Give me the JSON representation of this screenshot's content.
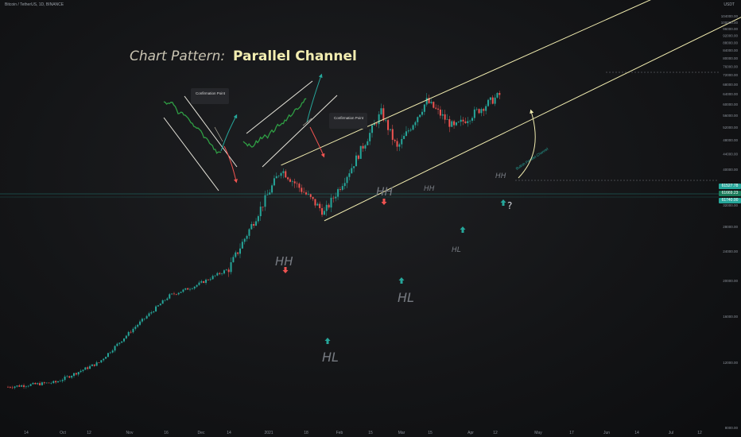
{
  "header": {
    "symbol": "Bitcoin / TetherUS, 1D, BINANCE",
    "currency": "USDT"
  },
  "annotations": {
    "pattern_title": "Chart Pattern:",
    "pattern_name": "Parallel Channel",
    "confirmation_point": "Confirmation Point",
    "channel_label": "Bullish Parallel Channel",
    "hh": "HH",
    "hl": "HL",
    "question": "?"
  },
  "price_boxes": [
    {
      "label": "61527.78",
      "color": "#26a69a"
    },
    {
      "label": "61669.23",
      "color": "#1b7a5a"
    },
    {
      "label": "61740.00",
      "color": "#26a69a"
    }
  ],
  "colors": {
    "bull": "#26a69a",
    "bear": "#ef5350",
    "channel": "#f2edb0",
    "arrow_up": "#26a69a",
    "arrow_down": "#ef5350"
  },
  "chart_data": {
    "type": "candlestick",
    "title": "",
    "xlabel": "",
    "ylabel": "",
    "scale": "log",
    "ylim": [
      8000,
      105000
    ],
    "x_ticks": [
      "14",
      "Oct",
      "12",
      "Nov",
      "16",
      "Dec",
      "14",
      "2021",
      "18",
      "Feb",
      "15",
      "Mar",
      "15",
      "Apr",
      "12",
      "May",
      "17",
      "Jun",
      "14",
      "Jul",
      "12"
    ],
    "y_ticks": [
      {
        "label": "104000.00",
        "value": 104000
      },
      {
        "label": "100000.00",
        "value": 100000
      },
      {
        "label": "96000.00",
        "value": 96000
      },
      {
        "label": "92000.00",
        "value": 92000
      },
      {
        "label": "88000.00",
        "value": 88000
      },
      {
        "label": "84000.00",
        "value": 84000
      },
      {
        "label": "80000.00",
        "value": 80000
      },
      {
        "label": "76000.00",
        "value": 76000
      },
      {
        "label": "72000.00",
        "value": 72000
      },
      {
        "label": "68000.00",
        "value": 68000
      },
      {
        "label": "64000.00",
        "value": 64000
      },
      {
        "label": "60000.00",
        "value": 60000
      },
      {
        "label": "56000.00",
        "value": 56000
      },
      {
        "label": "52000.00",
        "value": 52000
      },
      {
        "label": "48000.00",
        "value": 48000
      },
      {
        "label": "44000.00",
        "value": 44000
      },
      {
        "label": "40000.00",
        "value": 40000
      },
      {
        "label": "36000.00",
        "value": 36000
      },
      {
        "label": "32000.00",
        "value": 32000
      },
      {
        "label": "28000.00",
        "value": 28000
      },
      {
        "label": "24000.00",
        "value": 24000
      },
      {
        "label": "20000.00",
        "value": 20000
      },
      {
        "label": "16000.00",
        "value": 16000
      },
      {
        "label": "12000.00",
        "value": 12000
      },
      {
        "label": "8000.00",
        "value": 8000
      }
    ],
    "price_path": [
      [
        "2020-09-10",
        10300
      ],
      [
        "2020-10-01",
        10600
      ],
      [
        "2020-10-20",
        12000
      ],
      [
        "2020-11-05",
        15000
      ],
      [
        "2020-11-20",
        18200
      ],
      [
        "2020-12-01",
        19300
      ],
      [
        "2020-12-16",
        21500
      ],
      [
        "2021-01-08",
        40000
      ],
      [
        "2021-01-27",
        30500
      ],
      [
        "2021-02-08",
        40500
      ],
      [
        "2021-02-21",
        57000
      ],
      [
        "2021-02-28",
        45500
      ],
      [
        "2021-03-13",
        61200
      ],
      [
        "2021-03-25",
        51800
      ],
      [
        "2021-04-14",
        63500
      ]
    ],
    "channel": {
      "upper": [
        [
          "2021-01-08",
          41000
        ],
        [
          "2021-08-20",
          170000
        ]
      ],
      "lower": [
        [
          "2021-01-27",
          29000
        ],
        [
          "2021-08-20",
          120000
        ]
      ]
    },
    "swing_points": [
      {
        "label": "HH",
        "date": "2021-01-08",
        "price": 41000
      },
      {
        "label": "HL",
        "date": "2021-01-27",
        "price": 29000
      },
      {
        "label": "HH",
        "date": "2021-02-21",
        "price": 58000
      },
      {
        "label": "HL",
        "date": "2021-02-28",
        "price": 45000
      },
      {
        "label": "HH",
        "date": "2021-03-13",
        "price": 61500
      },
      {
        "label": "HL",
        "date": "2021-03-25",
        "price": 51000
      },
      {
        "label": "HH",
        "date": "2021-04-14",
        "price": 64800
      }
    ]
  }
}
